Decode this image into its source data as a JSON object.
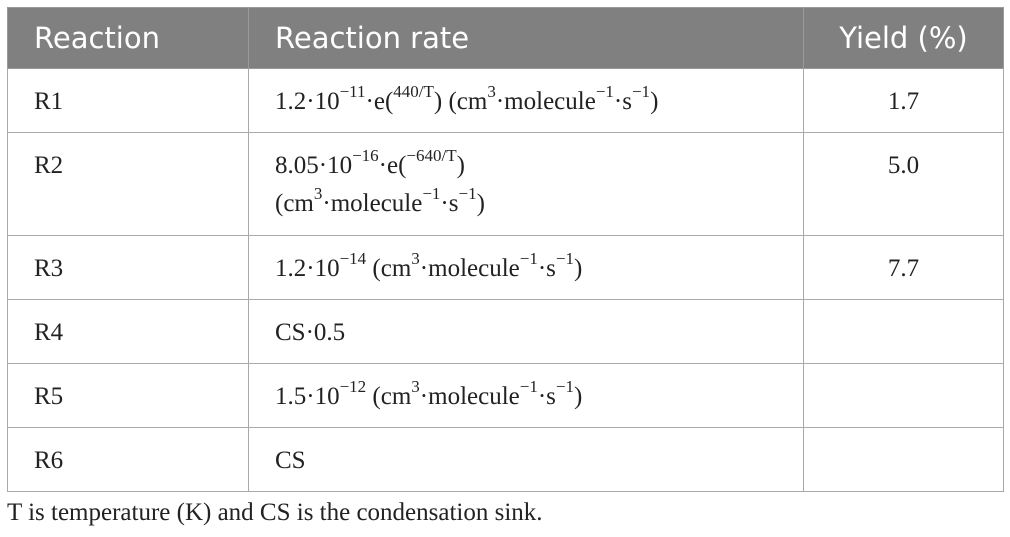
{
  "table": {
    "headers": [
      "Reaction",
      "Reaction rate",
      "Yield (%)"
    ],
    "rows": [
      {
        "reaction": "R1",
        "yield": "1.7"
      },
      {
        "reaction": "R2",
        "yield": "5.0"
      },
      {
        "reaction": "R3",
        "yield": "7.7"
      },
      {
        "reaction": "R4",
        "yield": ""
      },
      {
        "reaction": "R5",
        "yield": ""
      },
      {
        "reaction": "R6",
        "yield": ""
      }
    ],
    "rates": {
      "r1": {
        "coef": "1.2·10",
        "exp": "−11",
        "e": "·e(",
        "eexp": "440/T",
        "close": ")",
        "unit_open": " (cm",
        "cm_exp": "3",
        "mol": "·molecule",
        "mol_exp": "−1",
        "s": "·s",
        "s_exp": "−1",
        "unit_close": ")"
      },
      "r2": {
        "coef": "8.05·10",
        "exp": "−16",
        "e": "·e(",
        "eexp": "−640/T",
        "close": ")",
        "unit_open": "(cm",
        "cm_exp": "3",
        "mol": "·molecule",
        "mol_exp": "−1",
        "s": "·s",
        "s_exp": "−1",
        "unit_close": ")"
      },
      "r3": {
        "coef": "1.2·10",
        "exp": "−14",
        "unit_open": " (cm",
        "cm_exp": "3",
        "mol": "·molecule",
        "mol_exp": "−1",
        "s": "·s",
        "s_exp": "−1",
        "unit_close": ")"
      },
      "r4": {
        "text": "CS·0.5"
      },
      "r5": {
        "coef": "1.5·10",
        "exp": "−12",
        "unit_open": " (cm",
        "cm_exp": "3",
        "mol": "·molecule",
        "mol_exp": "−1",
        "s": "·s",
        "s_exp": "−1",
        "unit_close": ")"
      },
      "r6": {
        "text": "CS"
      }
    }
  },
  "footnote": "T is temperature (K) and CS is the condensation sink."
}
